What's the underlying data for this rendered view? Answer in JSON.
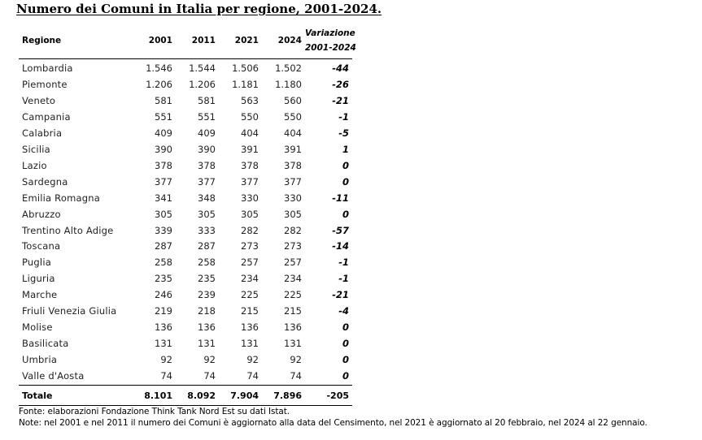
{
  "title": "Numero dei Comuni in Italia per regione, 2001-2024.",
  "table": {
    "headers": {
      "region": "Regione",
      "y2001": "2001",
      "y2011": "2011",
      "y2021": "2021",
      "y2024": "2024",
      "variation_line1": "Variazione",
      "variation_line2": "2001-2024"
    },
    "rows": [
      [
        "Lombardia",
        "1.546",
        "1.544",
        "1.506",
        "1.502",
        "-44"
      ],
      [
        "Piemonte",
        "1.206",
        "1.206",
        "1.181",
        "1.180",
        "-26"
      ],
      [
        "Veneto",
        "581",
        "581",
        "563",
        "560",
        "-21"
      ],
      [
        "Campania",
        "551",
        "551",
        "550",
        "550",
        "-1"
      ],
      [
        "Calabria",
        "409",
        "409",
        "404",
        "404",
        "-5"
      ],
      [
        "Sicilia",
        "390",
        "390",
        "391",
        "391",
        "1"
      ],
      [
        "Lazio",
        "378",
        "378",
        "378",
        "378",
        "0"
      ],
      [
        "Sardegna",
        "377",
        "377",
        "377",
        "377",
        "0"
      ],
      [
        "Emilia Romagna",
        "341",
        "348",
        "330",
        "330",
        "-11"
      ],
      [
        "Abruzzo",
        "305",
        "305",
        "305",
        "305",
        "0"
      ],
      [
        "Trentino Alto Adige",
        "339",
        "333",
        "282",
        "282",
        "-57"
      ],
      [
        "Toscana",
        "287",
        "287",
        "273",
        "273",
        "-14"
      ],
      [
        "Puglia",
        "258",
        "258",
        "257",
        "257",
        "-1"
      ],
      [
        "Liguria",
        "235",
        "235",
        "234",
        "234",
        "-1"
      ],
      [
        "Marche",
        "246",
        "239",
        "225",
        "225",
        "-21"
      ],
      [
        "Friuli Venezia Giulia",
        "219",
        "218",
        "215",
        "215",
        "-4"
      ],
      [
        "Molise",
        "136",
        "136",
        "136",
        "136",
        "0"
      ],
      [
        "Basilicata",
        "131",
        "131",
        "131",
        "131",
        "0"
      ],
      [
        "Umbria",
        "92",
        "92",
        "92",
        "92",
        "0"
      ],
      [
        "Valle d'Aosta",
        "74",
        "74",
        "74",
        "74",
        "0"
      ]
    ],
    "total": [
      "Totale",
      "8.101",
      "8.092",
      "7.904",
      "7.896",
      "-205"
    ]
  },
  "notes": {
    "source": "Fonte: elaborazioni Fondazione Think Tank Nord Est su dati Istat.",
    "note": "Note: nel 2001 e nel 2011 il numero dei Comuni è aggiornato alla data del Censimento, nel 2021 è aggiornato al 20 febbraio, nel 2024 al 22 gennaio."
  }
}
